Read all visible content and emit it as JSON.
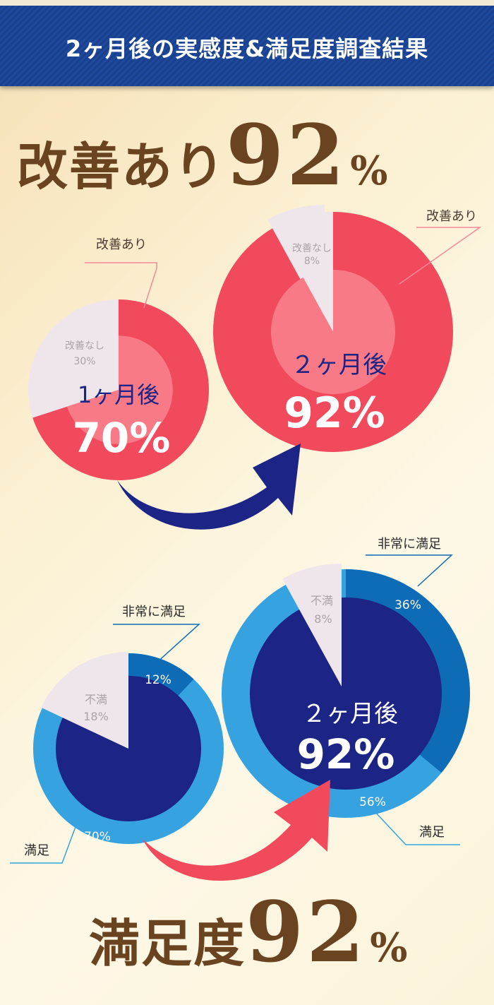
{
  "header": {
    "title": "2ヶ月後の実感度&満足度調査結果"
  },
  "headline_top": {
    "text": "改善あり",
    "number": "92",
    "unit": "%"
  },
  "headline_bottom": {
    "text": "満足度",
    "number": "92",
    "unit": "%"
  },
  "colors": {
    "improved": "#f24a5d",
    "improved_inner": "#f87a86",
    "not_improved": "#efe6ec",
    "very_satisfied": "#0e6bb5",
    "satisfied": "#36a3e0",
    "inner_navy": "#1c2486",
    "unsatisfied": "#efe6ec",
    "arrow_navy": "#1c2486",
    "arrow_red": "#f24a5d",
    "brown": "#6a4421",
    "header": "#1e4a9e"
  },
  "chart_data": [
    {
      "type": "pie",
      "period": "1ヶ月後",
      "value_label": "70%",
      "slices": [
        {
          "name": "改善あり",
          "value": 70
        },
        {
          "name": "改善なし",
          "value": 30,
          "label": "30%"
        }
      ],
      "annotation": "改善あり"
    },
    {
      "type": "pie",
      "period": "２ヶ月後",
      "value_label": "92%",
      "slices": [
        {
          "name": "改善あり",
          "value": 92
        },
        {
          "name": "改善なし",
          "value": 8,
          "label": "8%"
        }
      ],
      "annotation": "改善あり"
    },
    {
      "type": "pie",
      "value_label": "",
      "slices": [
        {
          "name": "非常に満足",
          "value": 12,
          "label": "12%"
        },
        {
          "name": "満足",
          "value": 70,
          "label": "70%"
        },
        {
          "name": "不満",
          "value": 18,
          "label": "18%"
        }
      ],
      "annotations": [
        "非常に満足",
        "満足"
      ]
    },
    {
      "type": "pie",
      "period": "２ヶ月後",
      "value_label": "92%",
      "slices": [
        {
          "name": "非常に満足",
          "value": 36,
          "label": "36%"
        },
        {
          "name": "満足",
          "value": 56,
          "label": "56%"
        },
        {
          "name": "不満",
          "value": 8,
          "label": "8%"
        }
      ],
      "annotations": [
        "非常に満足",
        "満足"
      ]
    }
  ]
}
